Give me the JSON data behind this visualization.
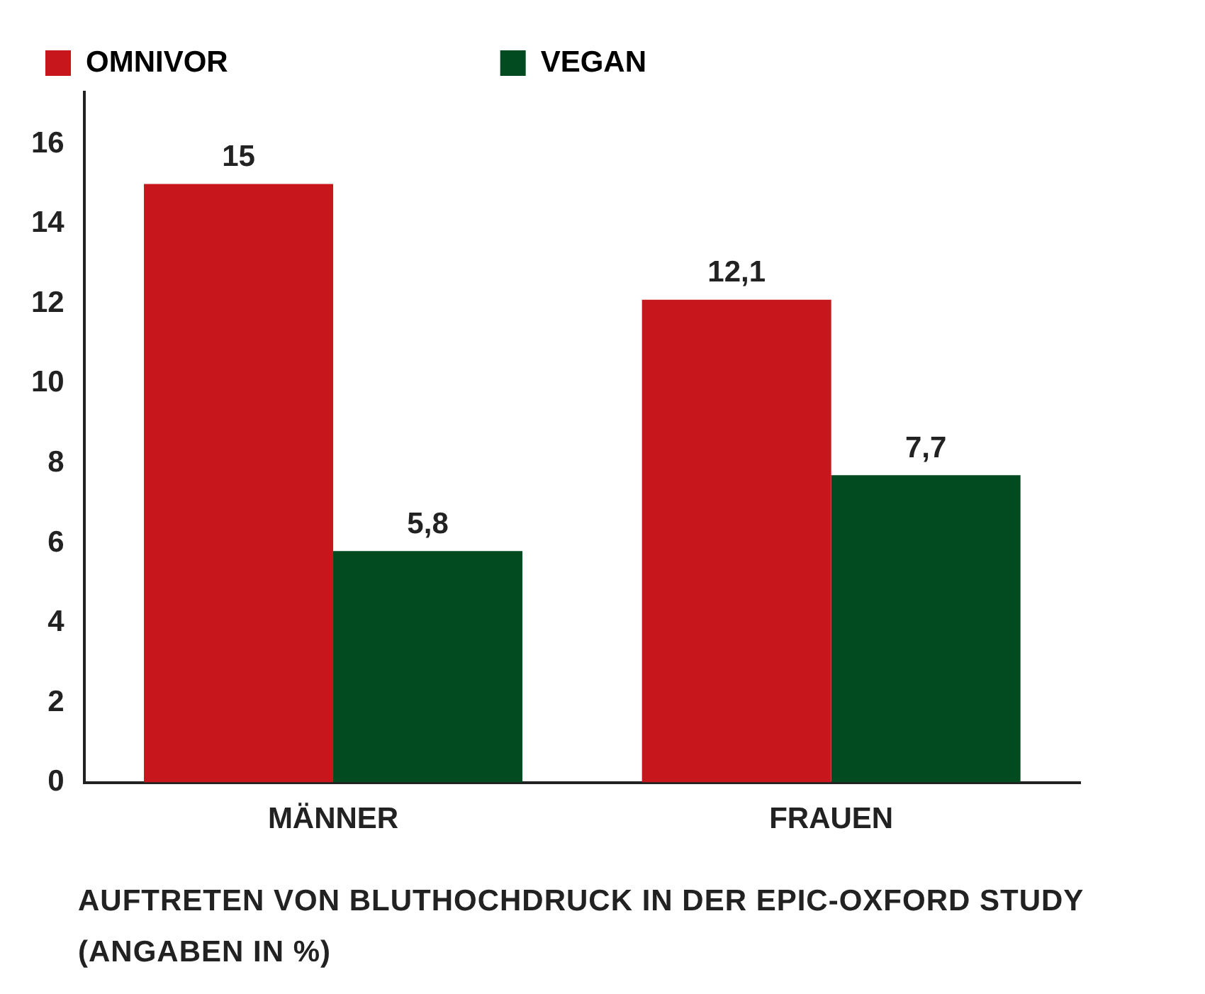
{
  "chart_data": {
    "type": "bar",
    "categories": [
      "MÄNNER",
      "FRAUEN"
    ],
    "series": [
      {
        "name": "OMNIVOR",
        "color": "#c8161d",
        "values": [
          15,
          12.1
        ],
        "value_labels": [
          "15",
          "12,1"
        ]
      },
      {
        "name": "VEGAN",
        "color": "#024a1f",
        "values": [
          5.8,
          7.7
        ],
        "value_labels": [
          "5,8",
          "7,7"
        ]
      }
    ],
    "ylim": [
      0,
      17.3
    ],
    "yticks": [
      0,
      2,
      4,
      6,
      8,
      10,
      12,
      14,
      16
    ],
    "grid": false,
    "legend": "top left",
    "annotations": [
      "AUFTRETEN VON BLUTHOCHDRUCK IN DER EPIC-OXFORD STUDY (ANGABEN IN %)"
    ]
  }
}
